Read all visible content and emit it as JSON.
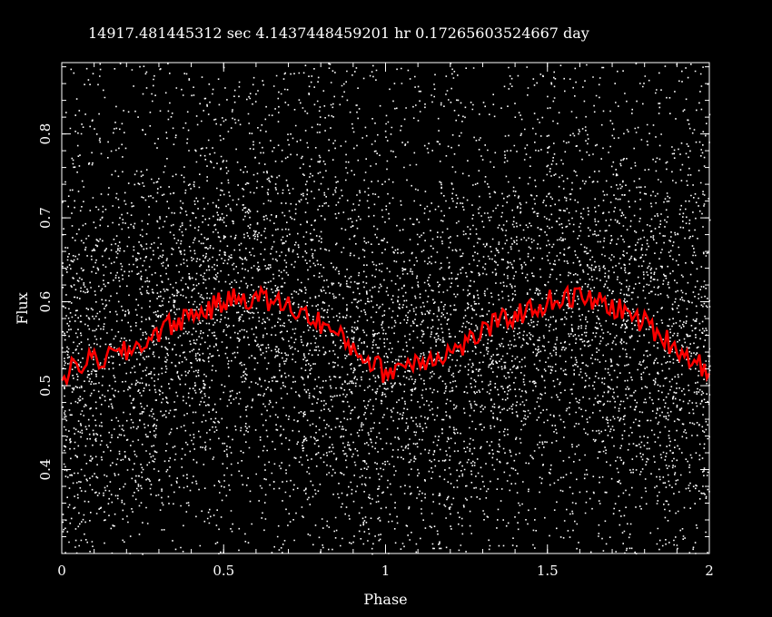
{
  "chart_data": {
    "type": "scatter",
    "title": "14917.481445312 sec     4.1437448459201   hr   0.17265603524667 day",
    "xlabel": "Phase",
    "ylabel": "Flux",
    "xlim": [
      0,
      2
    ],
    "ylim": [
      0.3,
      0.885
    ],
    "x_ticks": [
      0,
      0.5,
      1,
      1.5,
      2
    ],
    "x_tick_labels": [
      "0",
      "0.5",
      "1",
      "1.5",
      "2"
    ],
    "y_ticks": [
      0.4,
      0.5,
      0.6,
      0.7,
      0.8
    ],
    "y_tick_labels": [
      "0.4",
      "0.5",
      "0.6",
      "0.7",
      "0.8"
    ],
    "grid": false,
    "background_color": "#000000",
    "point_color": "#ffffff",
    "binned_color": "#ff0000",
    "series": [
      {
        "kind": "scatter-cloud",
        "description_of_distribution": "dense cloud of individual flux measurements spanning full y range, densest near the binned curve",
        "points_per_cycle_estimate": 9000
      },
      {
        "kind": "binned-line",
        "x": [
          0,
          0.05,
          0.1,
          0.15,
          0.2,
          0.25,
          0.3,
          0.35,
          0.4,
          0.45,
          0.5,
          0.55,
          0.6,
          0.65,
          0.7,
          0.75,
          0.8,
          0.85,
          0.9,
          0.95,
          1.0,
          1.05,
          1.1,
          1.15,
          1.2,
          1.25,
          1.3,
          1.35,
          1.4,
          1.45,
          1.5,
          1.55,
          1.6,
          1.65,
          1.7,
          1.75,
          1.8,
          1.85,
          1.9,
          1.95,
          2.0
        ],
        "y": [
          0.51,
          0.525,
          0.53,
          0.535,
          0.54,
          0.55,
          0.565,
          0.575,
          0.585,
          0.59,
          0.6,
          0.605,
          0.605,
          0.6,
          0.595,
          0.585,
          0.575,
          0.56,
          0.545,
          0.53,
          0.515,
          0.525,
          0.53,
          0.535,
          0.54,
          0.55,
          0.565,
          0.575,
          0.585,
          0.59,
          0.6,
          0.605,
          0.605,
          0.6,
          0.595,
          0.585,
          0.575,
          0.56,
          0.545,
          0.53,
          0.52
        ]
      }
    ]
  }
}
